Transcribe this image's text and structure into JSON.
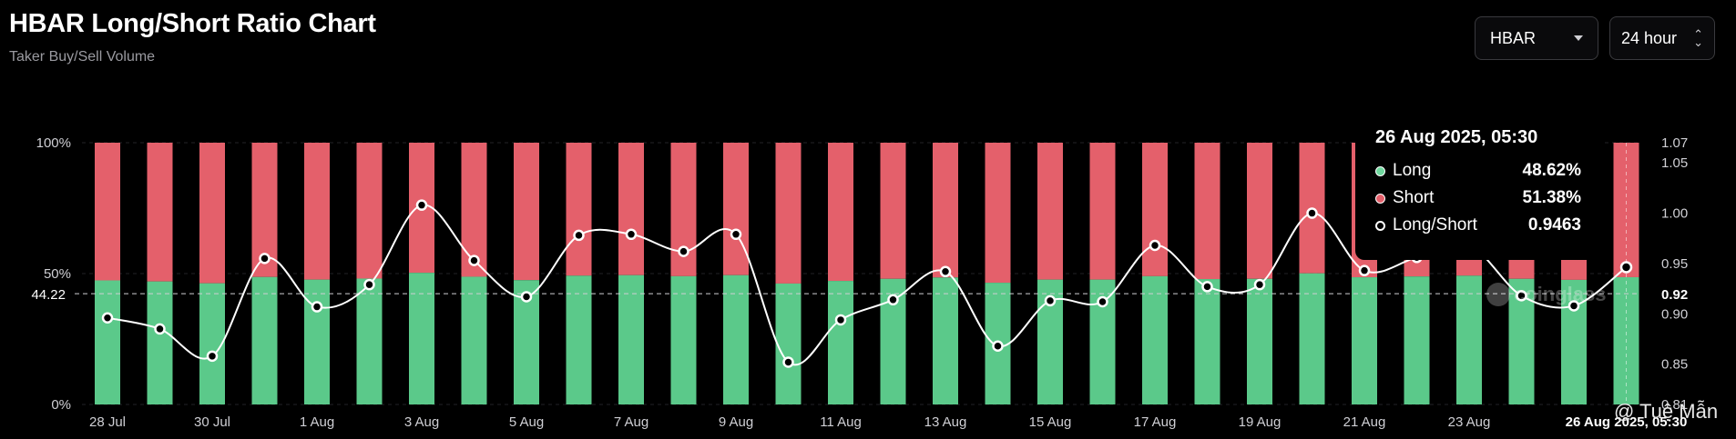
{
  "header": {
    "title": "HBAR Long/Short Ratio Chart",
    "subtitle": "Taker Buy/Sell Volume"
  },
  "controls": {
    "symbol": "HBAR",
    "interval": "24 hour"
  },
  "tooltip": {
    "date": "26 Aug 2025, 05:30",
    "rows": [
      {
        "label": "Long",
        "value": "48.62%",
        "color": "#6fd89e"
      },
      {
        "label": "Short",
        "value": "51.38%",
        "color": "#e4606b"
      },
      {
        "label": "Long/Short",
        "value": "0.9463",
        "color": "#ffffff"
      }
    ]
  },
  "watermark": "coinglass",
  "signature": "@ Tuệ Mẫn",
  "chart_data": {
    "type": "bar",
    "subtype": "stacked-percent bar with ratio line",
    "categories": [
      "28 Jul",
      "29 Jul",
      "30 Jul",
      "31 Jul",
      "1 Aug",
      "2 Aug",
      "3 Aug",
      "4 Aug",
      "5 Aug",
      "6 Aug",
      "7 Aug",
      "8 Aug",
      "9 Aug",
      "10 Aug",
      "11 Aug",
      "12 Aug",
      "13 Aug",
      "14 Aug",
      "15 Aug",
      "16 Aug",
      "17 Aug",
      "18 Aug",
      "19 Aug",
      "20 Aug",
      "21 Aug",
      "22 Aug",
      "23 Aug",
      "24 Aug",
      "25 Aug",
      "26 Aug"
    ],
    "x_tick_labels": [
      "28 Jul",
      "30 Jul",
      "1 Aug",
      "3 Aug",
      "5 Aug",
      "7 Aug",
      "9 Aug",
      "11 Aug",
      "13 Aug",
      "15 Aug",
      "17 Aug",
      "19 Aug",
      "21 Aug",
      "23 Aug",
      "26 Aug 2025, 05:30"
    ],
    "series": [
      {
        "name": "Long",
        "axis": "left",
        "color": "#5bc98a",
        "values": [
          47.4,
          47.0,
          46.3,
          48.7,
          47.7,
          48.1,
          50.3,
          48.8,
          47.5,
          49.2,
          49.4,
          49.0,
          49.4,
          46.2,
          47.2,
          48.0,
          48.5,
          46.5,
          47.7,
          47.7,
          49.0,
          47.9,
          48.0,
          50.1,
          48.6,
          48.9,
          49.2,
          48.0,
          47.6,
          48.62
        ]
      },
      {
        "name": "Short",
        "axis": "left",
        "color": "#e4606b",
        "values": [
          52.6,
          53.0,
          53.7,
          51.3,
          52.3,
          51.9,
          49.7,
          51.2,
          52.5,
          50.8,
          50.6,
          51.0,
          50.6,
          53.8,
          52.8,
          52.0,
          51.5,
          53.5,
          52.3,
          52.3,
          51.0,
          52.1,
          52.0,
          49.9,
          51.4,
          51.1,
          50.8,
          52.0,
          52.4,
          51.38
        ]
      },
      {
        "name": "Long/Short",
        "axis": "right",
        "color": "#ffffff",
        "values": [
          0.896,
          0.885,
          0.858,
          0.955,
          0.907,
          0.929,
          1.008,
          0.953,
          0.917,
          0.978,
          0.979,
          0.962,
          0.979,
          0.852,
          0.894,
          0.914,
          0.942,
          0.868,
          0.913,
          0.912,
          0.968,
          0.927,
          0.929,
          1.0,
          0.943,
          0.956,
          0.968,
          0.918,
          0.908,
          0.9463
        ]
      }
    ],
    "left_axis": {
      "ticks": [
        "100%",
        "50%",
        "0%"
      ],
      "ylim": [
        0,
        100
      ]
    },
    "right_axis": {
      "ticks": [
        "1.07",
        "1.05",
        "1.00",
        "0.95",
        "0.92",
        "0.90",
        "0.85",
        "0.81"
      ],
      "ylim": [
        0.81,
        1.07
      ]
    },
    "current_labels": {
      "left": "44.22",
      "right": "0.92"
    },
    "grid": "horizontal dashed"
  }
}
